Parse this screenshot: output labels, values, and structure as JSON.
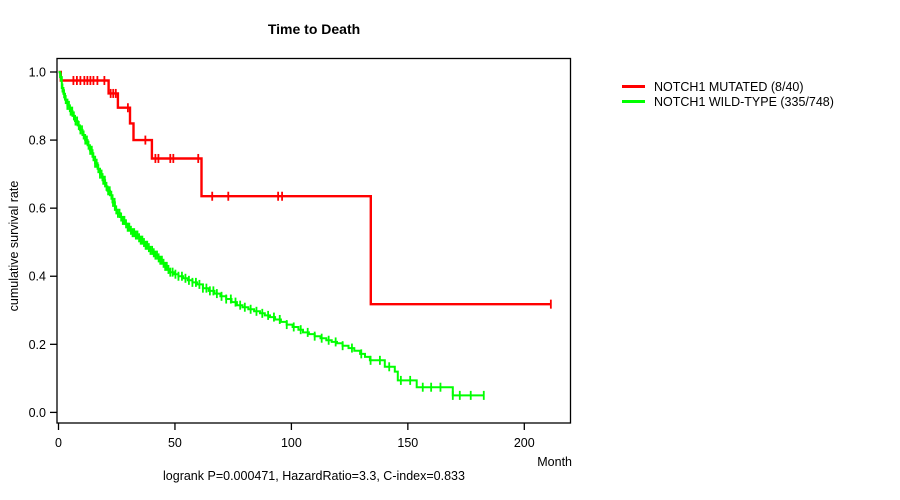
{
  "chart_data": {
    "type": "line",
    "subtype": "kaplan-meier-step-curves",
    "title": "Time to Death",
    "ylabel": "cumulative survival rate",
    "xlabel": "Month",
    "caption": "logrank P=0.000471, HazardRatio=3.3, C-index=0.833",
    "x_ticks": [
      0,
      50,
      100,
      150,
      200
    ],
    "y_ticks": [
      0.0,
      0.2,
      0.4,
      0.6,
      0.8,
      1.0
    ],
    "xlim": [
      0,
      220
    ],
    "ylim": [
      0,
      1
    ],
    "grid": false,
    "legend_position": "right-outside",
    "axis_color": "#000000",
    "series": [
      {
        "name": "NOTCH1 MUTATED (8/40)",
        "color": "#FF0000",
        "end_month": 211.4,
        "points": [
          [
            0,
            1.0
          ],
          [
            1,
            0.975
          ],
          [
            21.5,
            0.937
          ],
          [
            25.5,
            0.895
          ],
          [
            30.7,
            0.849
          ],
          [
            32.2,
            0.8
          ],
          [
            40.1,
            0.746
          ],
          [
            61.4,
            0.635
          ],
          [
            134.1,
            0.318
          ]
        ],
        "censor_months": [
          6.4,
          7.9,
          9.4,
          11.1,
          12.4,
          13.7,
          15.0,
          16.7,
          19.7,
          22.4,
          23.5,
          24.6,
          29.8,
          37.3,
          41.6,
          42.9,
          48.0,
          49.3,
          60.0,
          66.0,
          72.9,
          94.3,
          96.0,
          211.4
        ]
      },
      {
        "name": "NOTCH1 WILD-TYPE (335/748)",
        "color": "#00FF00",
        "end_month": 182.6,
        "points": [
          [
            0,
            1.0
          ],
          [
            0.7,
            0.985
          ],
          [
            1.4,
            0.953
          ],
          [
            2.1,
            0.936
          ],
          [
            2.8,
            0.919
          ],
          [
            3.8,
            0.902
          ],
          [
            4.9,
            0.885
          ],
          [
            6.0,
            0.871
          ],
          [
            7.1,
            0.856
          ],
          [
            8.2,
            0.843
          ],
          [
            9.2,
            0.83
          ],
          [
            10.3,
            0.815
          ],
          [
            11.4,
            0.8
          ],
          [
            12.5,
            0.785
          ],
          [
            13.5,
            0.77
          ],
          [
            14.6,
            0.751
          ],
          [
            15.7,
            0.732
          ],
          [
            16.8,
            0.716
          ],
          [
            17.8,
            0.7
          ],
          [
            18.9,
            0.682
          ],
          [
            20.0,
            0.664
          ],
          [
            21.0,
            0.651
          ],
          [
            22.1,
            0.638
          ],
          [
            23.2,
            0.617
          ],
          [
            24.2,
            0.595
          ],
          [
            25.3,
            0.585
          ],
          [
            26.4,
            0.574
          ],
          [
            27.5,
            0.564
          ],
          [
            28.6,
            0.554
          ],
          [
            29.7,
            0.544
          ],
          [
            30.7,
            0.535
          ],
          [
            31.8,
            0.528
          ],
          [
            32.9,
            0.521
          ],
          [
            34.0,
            0.513
          ],
          [
            35.0,
            0.506
          ],
          [
            36.1,
            0.499
          ],
          [
            37.2,
            0.491
          ],
          [
            38.2,
            0.484
          ],
          [
            39.3,
            0.476
          ],
          [
            40.4,
            0.469
          ],
          [
            41.5,
            0.462
          ],
          [
            42.5,
            0.454
          ],
          [
            43.6,
            0.447
          ],
          [
            44.7,
            0.438
          ],
          [
            45.7,
            0.429
          ],
          [
            46.8,
            0.42
          ],
          [
            47.8,
            0.412
          ],
          [
            49.5,
            0.406
          ],
          [
            51.5,
            0.4
          ],
          [
            53.5,
            0.394
          ],
          [
            55.5,
            0.388
          ],
          [
            57.5,
            0.382
          ],
          [
            59.5,
            0.376
          ],
          [
            62.0,
            0.365
          ],
          [
            64.5,
            0.357
          ],
          [
            67.0,
            0.349
          ],
          [
            69.5,
            0.341
          ],
          [
            72.0,
            0.333
          ],
          [
            74.3,
            0.324
          ],
          [
            76.6,
            0.315
          ],
          [
            79.0,
            0.309
          ],
          [
            81.5,
            0.303
          ],
          [
            84.0,
            0.297
          ],
          [
            86.5,
            0.291
          ],
          [
            88.6,
            0.285
          ],
          [
            90.8,
            0.28
          ],
          [
            93.0,
            0.273
          ],
          [
            95.5,
            0.266
          ],
          [
            98.0,
            0.258
          ],
          [
            100.5,
            0.251
          ],
          [
            103.0,
            0.243
          ],
          [
            105.0,
            0.235
          ],
          [
            107.5,
            0.23
          ],
          [
            110.0,
            0.224
          ],
          [
            112.5,
            0.218
          ],
          [
            115.0,
            0.212
          ],
          [
            117.3,
            0.207
          ],
          [
            119.6,
            0.203
          ],
          [
            122.0,
            0.196
          ],
          [
            124.5,
            0.189
          ],
          [
            127.0,
            0.181
          ],
          [
            129.5,
            0.172
          ],
          [
            131.6,
            0.163
          ],
          [
            133.7,
            0.153
          ],
          [
            140.1,
            0.134
          ],
          [
            144.4,
            0.12
          ],
          [
            145.7,
            0.094
          ],
          [
            153.8,
            0.074
          ],
          [
            169.3,
            0.05
          ]
        ],
        "censor_months": [
          1.0,
          1.7,
          2.4,
          3.1,
          3.8,
          4.5,
          5.2,
          5.9,
          6.6,
          7.3,
          8.0,
          8.7,
          9.4,
          10.1,
          10.8,
          11.5,
          12.2,
          12.9,
          13.6,
          14.3,
          15.0,
          15.7,
          16.4,
          17.1,
          17.8,
          18.5,
          19.2,
          19.9,
          20.6,
          21.3,
          22.0,
          22.7,
          23.4,
          24.1,
          24.8,
          25.5,
          26.2,
          26.9,
          27.6,
          28.3,
          29.0,
          29.7,
          30.4,
          31.1,
          31.8,
          32.5,
          33.2,
          33.9,
          34.6,
          35.3,
          36.0,
          36.7,
          37.4,
          38.1,
          38.8,
          39.5,
          40.2,
          40.9,
          41.6,
          42.3,
          43.0,
          43.7,
          44.4,
          45.1,
          45.8,
          46.5,
          47.2,
          48.0,
          49.0,
          50.2,
          51.5,
          53.0,
          54.5,
          56.0,
          57.5,
          59.0,
          60.5,
          62.0,
          63.5,
          65.0,
          66.5,
          68.0,
          70.0,
          72.0,
          74.0,
          76.0,
          78.0,
          80.0,
          82.5,
          85.0,
          87.5,
          90.0,
          92.5,
          95.0,
          98.0,
          101.0,
          104.0,
          107.0,
          110.0,
          113.0,
          116.0,
          119.0,
          122.0,
          126.0,
          130.0,
          134.0,
          138.0,
          142.0,
          147.0,
          151.0,
          156.4,
          160.0,
          164.0,
          169.3,
          172.3,
          177.0,
          182.6
        ]
      }
    ]
  }
}
